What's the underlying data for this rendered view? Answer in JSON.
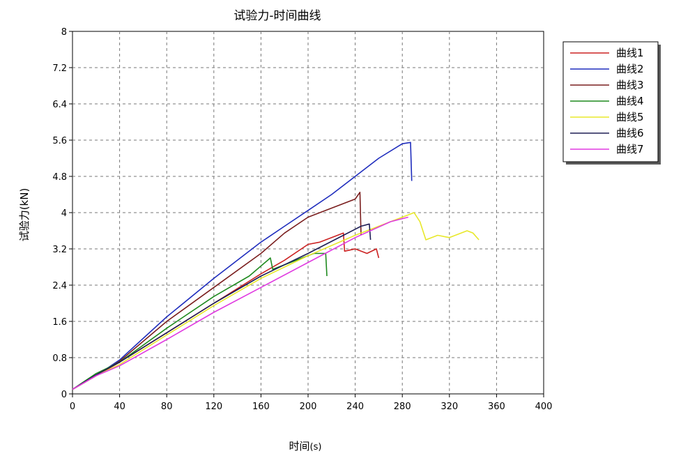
{
  "chart_data": {
    "type": "line",
    "title": "试验力-时间曲线",
    "xlabel": "时间",
    "xlabel_unit": "(s)",
    "ylabel": "试验力(kN)",
    "xlim": [
      0,
      400
    ],
    "ylim": [
      0,
      8
    ],
    "x_ticks": [
      "0",
      "40",
      "80",
      "120",
      "160",
      "200",
      "240",
      "280",
      "320",
      "360",
      "400"
    ],
    "y_ticks": [
      "0",
      "0.8",
      "1.6",
      "2.4",
      "3.2",
      "4",
      "4.8",
      "5.6",
      "6.4",
      "7.2",
      "8"
    ],
    "grid": true,
    "legend_position": "top-right",
    "series": [
      {
        "name": "曲线1",
        "color": "#cc2222",
        "points": [
          [
            0,
            0.1
          ],
          [
            20,
            0.4
          ],
          [
            40,
            0.7
          ],
          [
            80,
            1.35
          ],
          [
            120,
            2.0
          ],
          [
            160,
            2.65
          ],
          [
            180,
            2.95
          ],
          [
            200,
            3.3
          ],
          [
            210,
            3.35
          ],
          [
            225,
            3.5
          ],
          [
            230,
            3.55
          ],
          [
            231,
            3.15
          ],
          [
            240,
            3.2
          ],
          [
            250,
            3.1
          ],
          [
            258,
            3.2
          ],
          [
            260,
            3.0
          ]
        ]
      },
      {
        "name": "曲线2",
        "color": "#1f2dbd",
        "points": [
          [
            0,
            0.1
          ],
          [
            20,
            0.4
          ],
          [
            40,
            0.75
          ],
          [
            80,
            1.7
          ],
          [
            120,
            2.55
          ],
          [
            140,
            2.95
          ],
          [
            160,
            3.35
          ],
          [
            180,
            3.7
          ],
          [
            200,
            4.05
          ],
          [
            220,
            4.4
          ],
          [
            240,
            4.8
          ],
          [
            260,
            5.2
          ],
          [
            280,
            5.52
          ],
          [
            287,
            5.55
          ],
          [
            288,
            4.7
          ]
        ]
      },
      {
        "name": "曲线3",
        "color": "#7a1e1e",
        "points": [
          [
            0,
            0.1
          ],
          [
            20,
            0.4
          ],
          [
            40,
            0.72
          ],
          [
            80,
            1.6
          ],
          [
            120,
            2.35
          ],
          [
            160,
            3.1
          ],
          [
            180,
            3.55
          ],
          [
            200,
            3.9
          ],
          [
            220,
            4.1
          ],
          [
            240,
            4.3
          ],
          [
            244,
            4.45
          ],
          [
            245,
            3.5
          ]
        ]
      },
      {
        "name": "曲线4",
        "color": "#1f8a1f",
        "points": [
          [
            0,
            0.1
          ],
          [
            20,
            0.45
          ],
          [
            40,
            0.7
          ],
          [
            80,
            1.45
          ],
          [
            120,
            2.15
          ],
          [
            150,
            2.6
          ],
          [
            168,
            3.0
          ],
          [
            170,
            2.75
          ],
          [
            190,
            2.95
          ],
          [
            205,
            3.1
          ],
          [
            215,
            3.1
          ],
          [
            216,
            2.6
          ]
        ]
      },
      {
        "name": "曲线5",
        "color": "#e8e82a",
        "points": [
          [
            0,
            0.1
          ],
          [
            20,
            0.4
          ],
          [
            40,
            0.65
          ],
          [
            80,
            1.3
          ],
          [
            120,
            1.95
          ],
          [
            160,
            2.55
          ],
          [
            200,
            3.05
          ],
          [
            240,
            3.5
          ],
          [
            270,
            3.8
          ],
          [
            285,
            3.95
          ],
          [
            290,
            4.0
          ],
          [
            295,
            3.8
          ],
          [
            300,
            3.4
          ],
          [
            310,
            3.5
          ],
          [
            320,
            3.45
          ],
          [
            335,
            3.6
          ],
          [
            340,
            3.55
          ],
          [
            345,
            3.4
          ]
        ]
      },
      {
        "name": "曲线6",
        "color": "#1e1e55",
        "points": [
          [
            0,
            0.1
          ],
          [
            20,
            0.42
          ],
          [
            40,
            0.7
          ],
          [
            80,
            1.35
          ],
          [
            120,
            2.0
          ],
          [
            160,
            2.6
          ],
          [
            200,
            3.1
          ],
          [
            230,
            3.5
          ],
          [
            245,
            3.7
          ],
          [
            252,
            3.75
          ],
          [
            253,
            3.4
          ]
        ]
      },
      {
        "name": "曲线7",
        "color": "#e03ae0",
        "points": [
          [
            0,
            0.1
          ],
          [
            20,
            0.4
          ],
          [
            40,
            0.62
          ],
          [
            80,
            1.2
          ],
          [
            120,
            1.8
          ],
          [
            160,
            2.35
          ],
          [
            200,
            2.9
          ],
          [
            240,
            3.45
          ],
          [
            270,
            3.8
          ],
          [
            285,
            3.9
          ]
        ]
      }
    ]
  }
}
